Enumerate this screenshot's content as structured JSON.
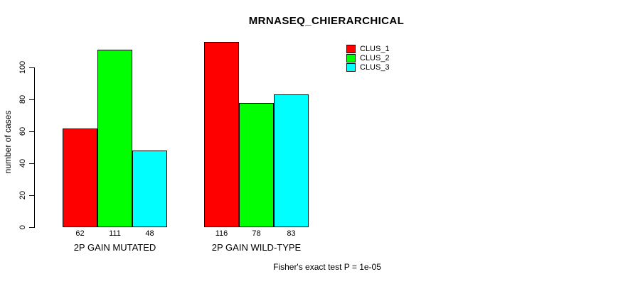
{
  "chart_data": {
    "type": "bar",
    "title": "MRNASEQ_CHIERARCHICAL",
    "xlabel": "",
    "ylabel": "number of cases",
    "groups": [
      "2P GAIN MUTATED",
      "2P GAIN WILD-TYPE"
    ],
    "series": [
      {
        "name": "CLUS_1",
        "color": "#FF0000",
        "values": [
          62,
          116
        ]
      },
      {
        "name": "CLUS_2",
        "color": "#00FF00",
        "values": [
          111,
          78
        ]
      },
      {
        "name": "CLUS_3",
        "color": "#00FFFF",
        "values": [
          48,
          83
        ]
      }
    ],
    "yticks": [
      0,
      20,
      40,
      60,
      80,
      100
    ],
    "ylim": [
      0,
      120
    ],
    "grid": false,
    "bar_value_labels_shown": true,
    "legend_position": "top-right",
    "legend_entries": [
      "CLUS_1",
      "CLUS_2",
      "CLUS_3"
    ],
    "footnote": "Fisher's exact test P = 1e-05",
    "axis_color": "#000000",
    "background_color": "#FFFFFF"
  }
}
